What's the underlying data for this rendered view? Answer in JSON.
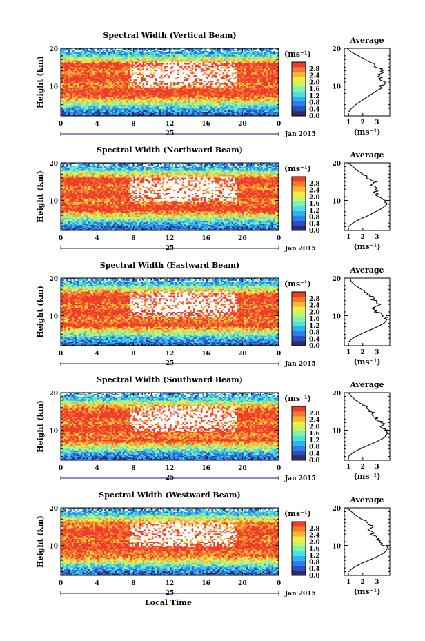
{
  "colors": {
    "scale": [
      "#2e2d6a",
      "#2b4fc2",
      "#2f7fe8",
      "#2fb2f2",
      "#4fe0dd",
      "#82f2ae",
      "#c6f56c",
      "#f5ea46",
      "#f8b33b",
      "#f47a2e",
      "#ef3d2c"
    ],
    "saturated": "#ef3d2c",
    "missing": "#ffffff"
  },
  "chart_data": [
    {
      "type": "heatmap",
      "title": "Spectral Width (Vertical Beam)",
      "xlabel": "",
      "ylabel": "Height (km)",
      "xlim": [
        0,
        24
      ],
      "ylim": [
        2,
        20
      ],
      "xticks": [
        "0",
        "4",
        "8",
        "12",
        "16",
        "20",
        "0"
      ],
      "yticks": [
        "20",
        "10"
      ],
      "date_day": "25",
      "date_label": "Jan 2015",
      "colorbar": {
        "unit": "(ms⁻¹)",
        "ticks": [
          "2.8",
          "2.4",
          "2.0",
          "1.6",
          "1.2",
          "0.8",
          "0.4",
          "0.0"
        ],
        "range": [
          0,
          3.2
        ]
      },
      "average": {
        "title": "Average",
        "xlabel": "(ms⁻¹)",
        "xticks": [
          "1",
          "2",
          "3"
        ],
        "xlim": [
          0.7,
          3.9
        ],
        "yticks": [
          "20",
          "10"
        ],
        "height": [
          3,
          4,
          5,
          6,
          7,
          8,
          9,
          10,
          11,
          12,
          13,
          14,
          15,
          16,
          17,
          18,
          19,
          20
        ],
        "value": [
          1.0,
          1.2,
          1.5,
          1.9,
          2.3,
          2.7,
          3.1,
          3.3,
          3.5,
          3.3,
          3.1,
          3.4,
          3.0,
          2.6,
          2.2,
          1.7,
          1.2,
          0.9
        ]
      }
    },
    {
      "type": "heatmap",
      "title": "Spectral Width (Northward Beam)",
      "xlabel": "",
      "ylabel": "Height (km)",
      "xlim": [
        0,
        24
      ],
      "ylim": [
        2,
        20
      ],
      "xticks": [
        "0",
        "4",
        "8",
        "12",
        "16",
        "20",
        "0"
      ],
      "yticks": [
        "20",
        "10"
      ],
      "date_day": "25",
      "date_label": "Jan 2015",
      "colorbar": {
        "unit": "(ms⁻¹)",
        "ticks": [
          "2.8",
          "2.4",
          "2.0",
          "1.6",
          "1.2",
          "0.8",
          "0.4",
          "0.0"
        ],
        "range": [
          0,
          3.2
        ]
      },
      "average": {
        "title": "Average",
        "xlabel": "(ms⁻¹)",
        "xticks": [
          "1",
          "2",
          "3"
        ],
        "xlim": [
          0.7,
          3.9
        ],
        "yticks": [
          "20",
          "10"
        ],
        "height": [
          3,
          4,
          5,
          6,
          7,
          8,
          9,
          10,
          11,
          12,
          13,
          14,
          15,
          16,
          17,
          18,
          19,
          20
        ],
        "value": [
          1.0,
          1.3,
          1.8,
          2.4,
          2.9,
          3.4,
          3.7,
          3.6,
          3.2,
          2.8,
          3.0,
          2.6,
          2.9,
          2.4,
          2.0,
          1.6,
          1.3,
          1.0
        ]
      }
    },
    {
      "type": "heatmap",
      "title": "Spectral Width (Eastward Beam)",
      "xlabel": "",
      "ylabel": "Height (km)",
      "xlim": [
        0,
        24
      ],
      "ylim": [
        2,
        20
      ],
      "xticks": [
        "0",
        "4",
        "8",
        "12",
        "16",
        "20",
        "0"
      ],
      "yticks": [
        "20",
        "10"
      ],
      "date_day": "25",
      "date_label": "Jan 2015",
      "colorbar": {
        "unit": "(ms⁻¹)",
        "ticks": [
          "2.8",
          "2.4",
          "2.0",
          "1.6",
          "1.2",
          "0.8",
          "0.4",
          "0.0"
        ],
        "range": [
          0,
          3.2
        ]
      },
      "average": {
        "title": "Average",
        "xlabel": "(ms⁻¹)",
        "xticks": [
          "1",
          "2",
          "3"
        ],
        "xlim": [
          0.7,
          3.9
        ],
        "yticks": [
          "20",
          "10"
        ],
        "height": [
          3,
          4,
          5,
          6,
          7,
          8,
          9,
          10,
          11,
          12,
          13,
          14,
          15,
          16,
          17,
          18,
          19,
          20
        ],
        "value": [
          1.0,
          1.3,
          1.8,
          2.4,
          3.0,
          3.5,
          3.7,
          3.4,
          3.0,
          2.7,
          3.1,
          2.8,
          2.7,
          2.3,
          1.9,
          1.5,
          1.2,
          1.1
        ]
      }
    },
    {
      "type": "heatmap",
      "title": "Spectral Width (Southward Beam)",
      "xlabel": "",
      "ylabel": "Height (km)",
      "xlim": [
        0,
        24
      ],
      "ylim": [
        2,
        20
      ],
      "xticks": [
        "0",
        "4",
        "8",
        "12",
        "16",
        "20",
        "0"
      ],
      "yticks": [
        "20",
        "10"
      ],
      "date_day": "25",
      "date_label": "Jan 2015",
      "colorbar": {
        "unit": "(ms⁻¹)",
        "ticks": [
          "2.8",
          "2.4",
          "2.0",
          "1.6",
          "1.2",
          "0.8",
          "0.4",
          "0.0"
        ],
        "range": [
          0,
          3.2
        ]
      },
      "average": {
        "title": "Average",
        "xlabel": "(ms⁻¹)",
        "xticks": [
          "1",
          "2",
          "3"
        ],
        "xlim": [
          0.7,
          3.9
        ],
        "yticks": [
          "20",
          "10"
        ],
        "height": [
          3,
          4,
          5,
          6,
          7,
          8,
          9,
          10,
          11,
          12,
          13,
          14,
          15,
          16,
          17,
          18,
          19,
          20
        ],
        "value": [
          1.0,
          1.3,
          1.8,
          2.4,
          3.0,
          3.5,
          3.7,
          3.6,
          3.3,
          3.4,
          3.0,
          2.8,
          2.6,
          2.3,
          1.9,
          1.5,
          1.2,
          1.0
        ]
      }
    },
    {
      "type": "heatmap",
      "title": "Spectral Width (Westward Beam)",
      "xlabel": "Local Time",
      "ylabel": "Height (km)",
      "xlim": [
        0,
        24
      ],
      "ylim": [
        2,
        20
      ],
      "xticks": [
        "0",
        "4",
        "8",
        "12",
        "16",
        "20",
        "0"
      ],
      "yticks": [
        "20",
        "10"
      ],
      "date_day": "25",
      "date_label": "Jan 2015",
      "colorbar": {
        "unit": "(ms⁻¹)",
        "ticks": [
          "2.8",
          "2.4",
          "2.0",
          "1.6",
          "1.2",
          "0.8",
          "0.4",
          "0.0"
        ],
        "range": [
          0,
          3.2
        ]
      },
      "average": {
        "title": "Average",
        "xlabel": "(ms⁻¹)",
        "xticks": [
          "1",
          "2",
          "3"
        ],
        "xlim": [
          0.7,
          3.9
        ],
        "yticks": [
          "20",
          "10"
        ],
        "height": [
          3,
          4,
          5,
          6,
          7,
          8,
          9,
          10,
          11,
          12,
          13,
          14,
          15,
          16,
          17,
          18,
          19,
          20
        ],
        "value": [
          1.0,
          1.3,
          1.8,
          2.4,
          3.0,
          3.5,
          3.7,
          3.5,
          3.2,
          2.9,
          2.7,
          2.5,
          2.6,
          2.3,
          1.9,
          1.5,
          1.2,
          0.9
        ]
      }
    }
  ]
}
